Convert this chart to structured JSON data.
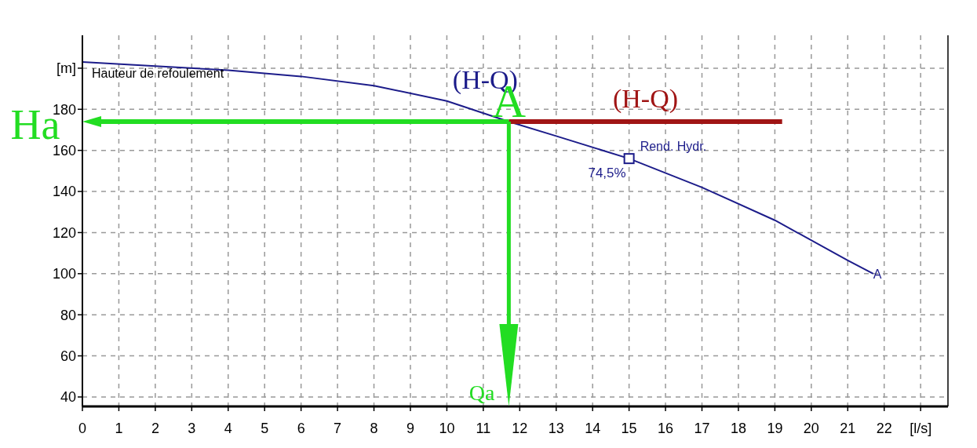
{
  "chart_data": {
    "type": "line",
    "series": [
      {
        "name": "(H-Q)",
        "color": "#1c1c8a",
        "x": [
          0,
          2,
          4,
          6,
          8,
          10,
          11.7,
          13,
          15,
          17,
          19,
          21,
          21.7
        ],
        "values": [
          203,
          201,
          199,
          196,
          191.5,
          184,
          174,
          167,
          156,
          142,
          126,
          106.5,
          100
        ]
      },
      {
        "name": "(H-Q)",
        "color": "#a01515",
        "x": [
          11.7,
          19.2
        ],
        "values": [
          174,
          174
        ]
      },
      {
        "type": "scatter",
        "marker": "square",
        "color": "#1c1c8a",
        "x": [
          15
        ],
        "values": [
          156
        ]
      }
    ],
    "xlim": [
      0,
      23.75
    ],
    "xticks": [
      0,
      1,
      2,
      3,
      4,
      5,
      6,
      7,
      8,
      9,
      10,
      11,
      12,
      13,
      14,
      15,
      16,
      17,
      18,
      19,
      20,
      21,
      22,
      {
        "value": 23,
        "label": "[l/s]"
      }
    ],
    "ylim": [
      35.4,
      216
    ],
    "yticks": [
      40,
      60,
      80,
      100,
      120,
      140,
      160,
      180,
      {
        "value": 200,
        "label": "[m]"
      }
    ],
    "grid": true,
    "marker": "none",
    "annotations": [
      {
        "text": "A",
        "x": 11.7,
        "y": 174
      },
      "Ha",
      "Qa",
      {
        "text": "Hauteur de refoulement",
        "x": 0,
        "y": 203
      },
      {
        "text": "Rend. Hydr.",
        "x": 15,
        "y": 156
      },
      {
        "text": "74,5%",
        "x": 15,
        "y": 156
      },
      {
        "text": "A",
        "x": 21.7,
        "y": 100
      }
    ]
  }
}
